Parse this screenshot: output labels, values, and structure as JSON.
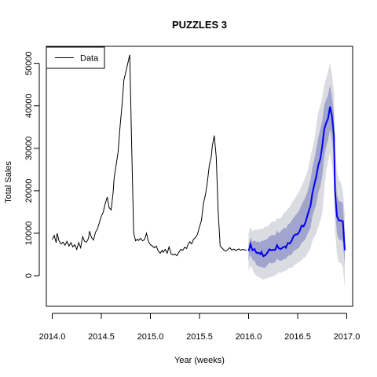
{
  "chart_data": {
    "type": "line",
    "title": "PUZZLES 3",
    "xlabel": "Year (weeks)",
    "ylabel": "Total Sales",
    "xlim": [
      2013.94,
      2017.06
    ],
    "ylim": [
      -7200,
      54000
    ],
    "x_ticks": [
      2014.0,
      2014.5,
      2015.0,
      2015.5,
      2016.0,
      2016.5,
      2017.0
    ],
    "x_tick_labels": [
      "2014.0",
      "2014.5",
      "2015.0",
      "2015.5",
      "2016.0",
      "2016.5",
      "2017.0"
    ],
    "y_ticks": [
      0,
      10000,
      20000,
      30000,
      40000,
      50000
    ],
    "y_tick_labels": [
      "0",
      "10000",
      "20000",
      "30000",
      "40000",
      "50000"
    ],
    "grid": false,
    "legend": {
      "position": "top-left",
      "entries": [
        "Data"
      ]
    },
    "colors": {
      "data": "#000000",
      "forecast": "#0000ee",
      "interval_outer": "#dbdbe2",
      "interval_inner": "#a1a4cd"
    },
    "series": [
      {
        "name": "Data",
        "x": [
          2014.0,
          2014.02,
          2014.04,
          2014.05,
          2014.07,
          2014.09,
          2014.11,
          2014.13,
          2014.15,
          2014.17,
          2014.19,
          2014.21,
          2014.23,
          2014.25,
          2014.27,
          2014.29,
          2014.31,
          2014.33,
          2014.35,
          2014.37,
          2014.38,
          2014.4,
          2014.42,
          2014.44,
          2014.46,
          2014.48,
          2014.5,
          2014.52,
          2014.54,
          2014.56,
          2014.58,
          2014.6,
          2014.62,
          2014.63,
          2014.65,
          2014.67,
          2014.69,
          2014.71,
          2014.73,
          2014.75,
          2014.77,
          2014.79,
          2014.81,
          2014.83,
          2014.85,
          2014.87,
          2014.88,
          2014.9,
          2014.92,
          2014.94,
          2014.96,
          2014.98,
          2015.0,
          2015.02,
          2015.04,
          2015.06,
          2015.08,
          2015.1,
          2015.12,
          2015.13,
          2015.15,
          2015.17,
          2015.19,
          2015.21,
          2015.23,
          2015.25,
          2015.27,
          2015.29,
          2015.31,
          2015.33,
          2015.35,
          2015.37,
          2015.38,
          2015.4,
          2015.42,
          2015.44,
          2015.46,
          2015.48,
          2015.5,
          2015.52,
          2015.54,
          2015.56,
          2015.58,
          2015.6,
          2015.62,
          2015.63,
          2015.65,
          2015.67,
          2015.69,
          2015.71,
          2015.73,
          2015.75,
          2015.77,
          2015.79,
          2015.81,
          2015.83,
          2015.85,
          2015.87,
          2015.88,
          2015.9,
          2015.92,
          2015.94,
          2015.96,
          2015.98
        ],
        "y": [
          8500,
          9500,
          7800,
          10000,
          8200,
          7500,
          7900,
          7200,
          8100,
          7000,
          7800,
          6800,
          7300,
          6200,
          7800,
          6600,
          9200,
          8100,
          7900,
          8800,
          10500,
          9000,
          8400,
          10200,
          11000,
          12500,
          14000,
          15000,
          17000,
          18500,
          16000,
          15500,
          19500,
          23000,
          26000,
          29000,
          35000,
          40000,
          46000,
          48000,
          50000,
          52000,
          30000,
          10000,
          8200,
          8600,
          8300,
          8800,
          8200,
          8500,
          10000,
          8000,
          7300,
          7000,
          6600,
          7000,
          5800,
          5300,
          6000,
          5500,
          6200,
          5300,
          6800,
          5200,
          4900,
          5100,
          4700,
          5500,
          6200,
          6000,
          6700,
          6400,
          7200,
          8000,
          7500,
          8600,
          9000,
          9800,
          11500,
          13000,
          17000,
          19000,
          22000,
          26000,
          28000,
          30500,
          33000,
          28000,
          15000,
          7000,
          6500,
          6000,
          5800,
          6200,
          6600,
          6000,
          6300,
          5900,
          6100,
          6300,
          6000,
          6200,
          6100,
          6000
        ]
      },
      {
        "name": "",
        "x": [
          2016.0,
          2016.02,
          2016.04,
          2016.06,
          2016.08,
          2016.1,
          2016.12,
          2016.13,
          2016.15,
          2016.17,
          2016.19,
          2016.21,
          2016.23,
          2016.25,
          2016.27,
          2016.29,
          2016.31,
          2016.33,
          2016.35,
          2016.37,
          2016.38,
          2016.4,
          2016.42,
          2016.44,
          2016.46,
          2016.48,
          2016.5,
          2016.52,
          2016.54,
          2016.56,
          2016.58,
          2016.6,
          2016.62,
          2016.63,
          2016.65,
          2016.67,
          2016.69,
          2016.71,
          2016.73,
          2016.75,
          2016.77,
          2016.79,
          2016.81,
          2016.83,
          2016.85,
          2016.87,
          2016.88,
          2016.9,
          2016.92,
          2016.94,
          2016.96,
          2016.98
        ],
        "y": [
          5800,
          7400,
          6000,
          6300,
          5400,
          5400,
          5100,
          5600,
          4600,
          4800,
          5400,
          6200,
          6000,
          6100,
          6100,
          7200,
          6400,
          6300,
          6700,
          6900,
          6600,
          7700,
          7600,
          8300,
          9400,
          9700,
          9800,
          10500,
          11800,
          11600,
          12600,
          14200,
          15800,
          16400,
          19500,
          21500,
          23500,
          26000,
          27500,
          30500,
          34500,
          36000,
          37000,
          39800,
          37500,
          33000,
          20000,
          14000,
          13000,
          13000,
          12800,
          6000
        ],
        "interval_outer": {
          "upper": [
            10000,
            11500,
            10500,
            10800,
            10800,
            11000,
            10800,
            11200,
            11100,
            11600,
            11500,
            12000,
            12600,
            12800,
            12700,
            13600,
            13400,
            13600,
            14400,
            15100,
            15000,
            15900,
            16100,
            17300,
            17800,
            18500,
            19200,
            20100,
            21100,
            22200,
            23300,
            24600,
            26700,
            28000,
            30000,
            32000,
            35500,
            38500,
            40000,
            42000,
            45000,
            46500,
            48000,
            50000,
            47500,
            43000,
            30000,
            24500,
            22500,
            22000,
            20000,
            14500
          ],
          "lower": [
            1000,
            2500,
            1500,
            500,
            0,
            -300,
            -500,
            -800,
            -900,
            -700,
            -600,
            -400,
            -300,
            -100,
            0,
            400,
            800,
            600,
            1000,
            1100,
            1200,
            1600,
            1900,
            1800,
            2400,
            2700,
            3000,
            3400,
            3600,
            4200,
            4300,
            5300,
            5800,
            6500,
            8300,
            9100,
            10000,
            11600,
            13000,
            14800,
            20000,
            24500,
            27000,
            29000,
            26000,
            22000,
            11000,
            5000,
            3000,
            3000,
            2000,
            -3000
          ]
        },
        "interval_inner": {
          "upper": [
            7500,
            9000,
            8000,
            8300,
            8000,
            8000,
            7800,
            8300,
            8200,
            8500,
            8600,
            9200,
            9500,
            9600,
            9500,
            10600,
            10000,
            10500,
            11000,
            11400,
            11000,
            12100,
            12300,
            13000,
            13700,
            14300,
            14800,
            15600,
            16700,
            17600,
            18500,
            19800,
            21500,
            22500,
            25500,
            27500,
            30000,
            32500,
            34500,
            36500,
            40000,
            41500,
            42500,
            45000,
            42000,
            38000,
            25000,
            19000,
            17500,
            17500,
            17000,
            9500
          ],
          "lower": [
            3500,
            5000,
            3700,
            3500,
            2500,
            2300,
            2000,
            2200,
            1800,
            1900,
            2400,
            3100,
            2900,
            3000,
            3100,
            4000,
            3600,
            3500,
            3800,
            4000,
            3900,
            4700,
            4800,
            5000,
            5900,
            6100,
            6400,
            6800,
            7800,
            8100,
            8700,
            9800,
            10800,
            11300,
            14000,
            15500,
            17000,
            19500,
            21000,
            23500,
            28000,
            30500,
            32000,
            34500,
            32000,
            27500,
            16000,
            10000,
            8500,
            8500,
            8000,
            2500
          ]
        }
      }
    ]
  }
}
